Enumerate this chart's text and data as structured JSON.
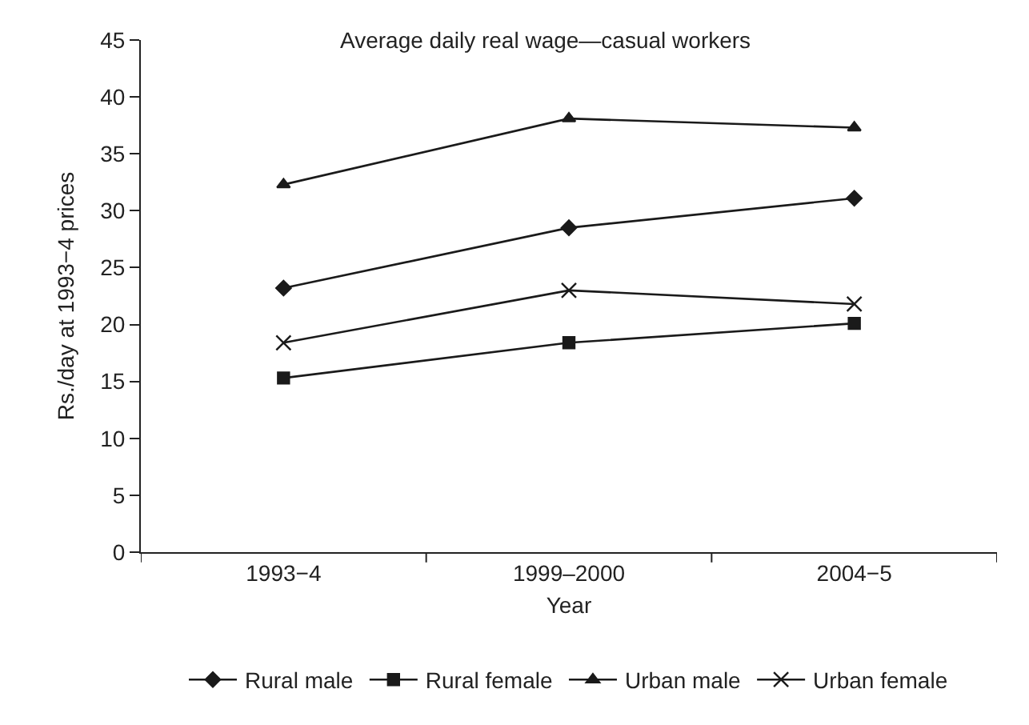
{
  "chart_data": {
    "type": "line",
    "title": "Average daily real wage—casual workers",
    "xlabel": "Year",
    "ylabel": "Rs./day at 1993−4 prices",
    "categories": [
      "1993−4",
      "1999–2000",
      "2004−5"
    ],
    "series": [
      {
        "name": "Rural male",
        "color": "#1a1a1a",
        "marker": "diamond",
        "values": [
          23.2,
          28.5,
          31.1
        ]
      },
      {
        "name": "Rural female",
        "color": "#1a1a1a",
        "marker": "square",
        "values": [
          15.3,
          18.4,
          20.1
        ]
      },
      {
        "name": "Urban male",
        "color": "#1a1a1a",
        "marker": "triangle",
        "values": [
          32.3,
          38.1,
          37.3
        ]
      },
      {
        "name": "Urban female",
        "color": "#1a1a1a",
        "marker": "cross",
        "values": [
          18.4,
          23.0,
          21.8
        ]
      }
    ],
    "ylim": [
      0,
      45
    ],
    "yticks": [
      0,
      5,
      10,
      15,
      20,
      25,
      30,
      35,
      40,
      45
    ],
    "grid": false,
    "legend": "bottom",
    "line_style": "solid"
  }
}
